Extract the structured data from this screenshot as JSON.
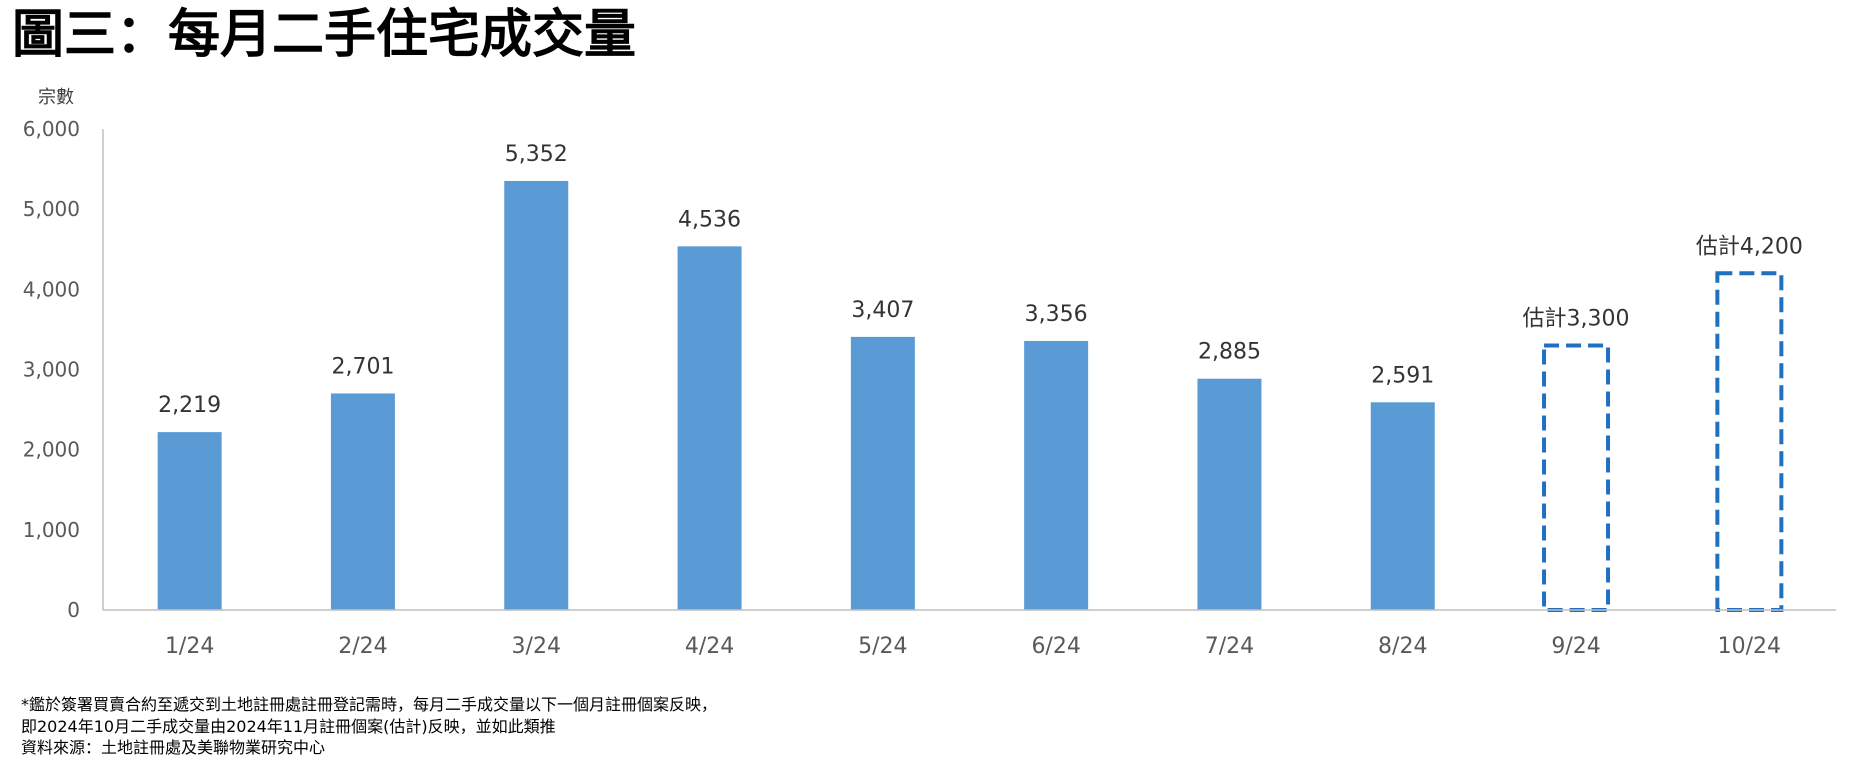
{
  "colors": {
    "bar_fill": "#5B9BD5",
    "estimate_outline": "#1F70C1",
    "axis": "#BFBFBF"
  },
  "footnotes": [
    "*鑑於簽署買賣合約至遞交到土地註冊處註冊登記需時，每月二手成交量以下一個月註冊個案反映，",
    "即2024年10月二手成交量由2024年11月註冊個案(估計)反映，並如此類推",
    "資料來源：土地註冊處及美聯物業研究中心"
  ],
  "chart_data": {
    "type": "bar",
    "title": "圖三：每月二手住宅成交量",
    "ylabel": "宗數",
    "categories": [
      "1/24",
      "2/24",
      "3/24",
      "4/24",
      "5/24",
      "6/24",
      "7/24",
      "8/24",
      "9/24",
      "10/24"
    ],
    "values": [
      2219,
      2701,
      5352,
      4536,
      3407,
      3356,
      2885,
      2591,
      3300,
      4200
    ],
    "data_labels": [
      "2,219",
      "2,701",
      "5,352",
      "4,536",
      "3,407",
      "3,356",
      "2,885",
      "2,591",
      "估計3,300",
      "估計4,200"
    ],
    "dashed": [
      false,
      false,
      false,
      false,
      false,
      false,
      false,
      false,
      true,
      true
    ],
    "ylim": [
      0,
      6000
    ],
    "yticks": [
      0,
      1000,
      2000,
      3000,
      4000,
      5000,
      6000
    ],
    "ytick_labels": [
      "0",
      "1,000",
      "2,000",
      "3,000",
      "4,000",
      "5,000",
      "6,000"
    ],
    "grid": false,
    "legend": false
  }
}
